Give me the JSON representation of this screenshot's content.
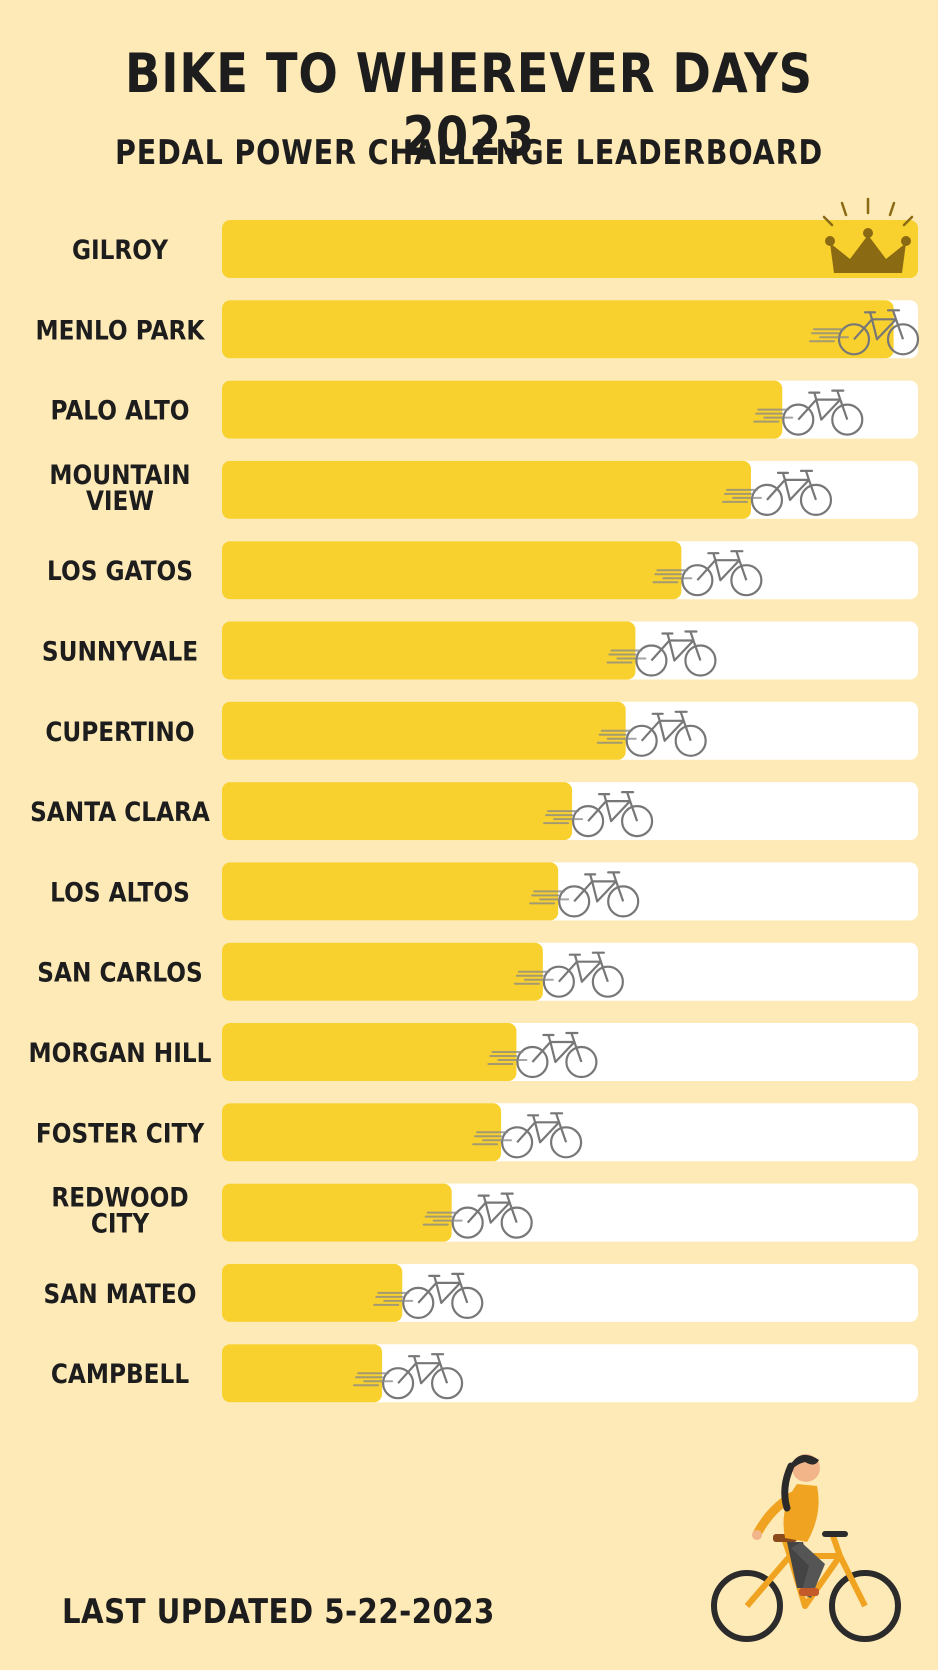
{
  "header": {
    "title": "BIKE TO WHEREVER DAYS 2023",
    "subtitle": "PEDAL POWER CHALLENGE LEADERBOARD"
  },
  "footer": {
    "last_updated": "LAST UPDATED 5-22-2023"
  },
  "colors": {
    "background": "#feeab6",
    "bar_fill": "#f8d12f",
    "track": "#ffffff",
    "crown": "#8a6a12",
    "text": "#1d1d1d"
  },
  "icons": {
    "leader_marker": "crown-icon",
    "progress_marker": "bicycle-icon"
  },
  "chart_data": {
    "type": "bar",
    "orientation": "horizontal",
    "title": "BIKE TO WHEREVER DAYS 2023",
    "subtitle": "PEDAL POWER CHALLENGE LEADERBOARD",
    "value_unit": "fraction of leader",
    "xlim": [
      0,
      1
    ],
    "grid": false,
    "categories": [
      [
        "GILROY"
      ],
      [
        "MENLO PARK"
      ],
      [
        "PALO ALTO"
      ],
      [
        "MOUNTAIN",
        "VIEW"
      ],
      [
        "LOS GATOS"
      ],
      [
        "SUNNYVALE"
      ],
      [
        "CUPERTINO"
      ],
      [
        "SANTA CLARA"
      ],
      [
        "LOS ALTOS"
      ],
      [
        "SAN CARLOS"
      ],
      [
        "MORGAN HILL"
      ],
      [
        "FOSTER CITY"
      ],
      [
        "REDWOOD",
        "CITY"
      ],
      [
        "SAN MATEO"
      ],
      [
        "CAMPBELL"
      ]
    ],
    "values": [
      1.0,
      0.965,
      0.805,
      0.76,
      0.66,
      0.594,
      0.58,
      0.503,
      0.483,
      0.461,
      0.423,
      0.401,
      0.33,
      0.259,
      0.23
    ]
  }
}
